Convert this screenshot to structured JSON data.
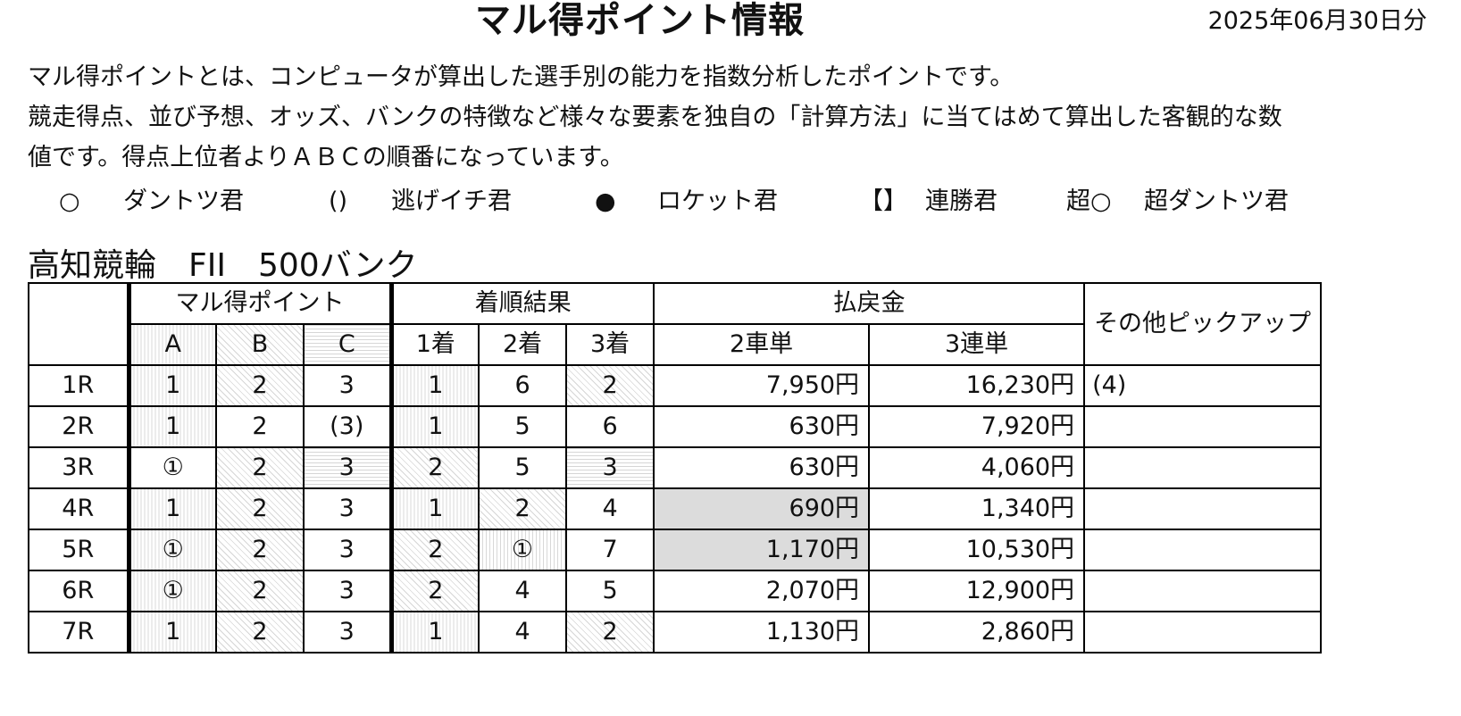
{
  "header": {
    "title": "マル得ポイント情報",
    "date": "2025年06月30日分"
  },
  "description": {
    "line1": "マル得ポイントとは、コンピュータが算出した選手別の能力を指数分析したポイントです。",
    "line2": "競走得点、並び予想、オッズ、バンクの特徴など様々な要素を独自の「計算方法」に当てはめて算出した客観的な数",
    "line3": "値です。得点上位者よりＡＢＣの順番になっています。"
  },
  "legend": [
    {
      "symbol": "○",
      "label": "ダントツ君"
    },
    {
      "symbol": "()",
      "label": "逃げイチ君"
    },
    {
      "symbol": "●",
      "label": "ロケット君"
    },
    {
      "symbol": "【】",
      "label": "連勝君"
    },
    {
      "symbol": "超○",
      "label": "超ダントツ君"
    }
  ],
  "venue": "高知競輪　FII　500バンク",
  "table": {
    "headers": {
      "maru_points": "マル得ポイント",
      "result": "着順結果",
      "payout": "払戻金",
      "other": "その他ピックアップ",
      "a": "A",
      "b": "B",
      "c": "C",
      "p1": "1着",
      "p2": "2着",
      "p3": "3着",
      "exacta": "2車単",
      "trifecta": "3連単"
    },
    "rows": [
      {
        "race": "1R",
        "a": "1",
        "b": "2",
        "c": "3",
        "r1": "1",
        "r2": "6",
        "r3": "2",
        "exacta": "7,950円",
        "trifecta": "16,230円",
        "pick": "(4)"
      },
      {
        "race": "2R",
        "a": "1",
        "b": "2",
        "c": "(3)",
        "r1": "1",
        "r2": "5",
        "r3": "6",
        "exacta": "630円",
        "trifecta": "7,920円",
        "pick": ""
      },
      {
        "race": "3R",
        "a": "①",
        "b": "2",
        "c": "3",
        "r1": "2",
        "r2": "5",
        "r3": "3",
        "exacta": "630円",
        "trifecta": "4,060円",
        "pick": ""
      },
      {
        "race": "4R",
        "a": "1",
        "b": "2",
        "c": "3",
        "r1": "1",
        "r2": "2",
        "r3": "4",
        "exacta": "690円",
        "trifecta": "1,340円",
        "pick": ""
      },
      {
        "race": "5R",
        "a": "①",
        "b": "2",
        "c": "3",
        "r1": "2",
        "r2": "①",
        "r3": "7",
        "exacta": "1,170円",
        "trifecta": "10,530円",
        "pick": ""
      },
      {
        "race": "6R",
        "a": "①",
        "b": "2",
        "c": "3",
        "r1": "2",
        "r2": "4",
        "r3": "5",
        "exacta": "2,070円",
        "trifecta": "12,900円",
        "pick": ""
      },
      {
        "race": "7R",
        "a": "1",
        "b": "2",
        "c": "3",
        "r1": "1",
        "r2": "4",
        "r3": "2",
        "exacta": "1,130円",
        "trifecta": "2,860円",
        "pick": ""
      }
    ]
  },
  "colors": {
    "highlight": "#dcdcdc",
    "pattern_line": "#d6d6d6",
    "border": "#000000"
  }
}
